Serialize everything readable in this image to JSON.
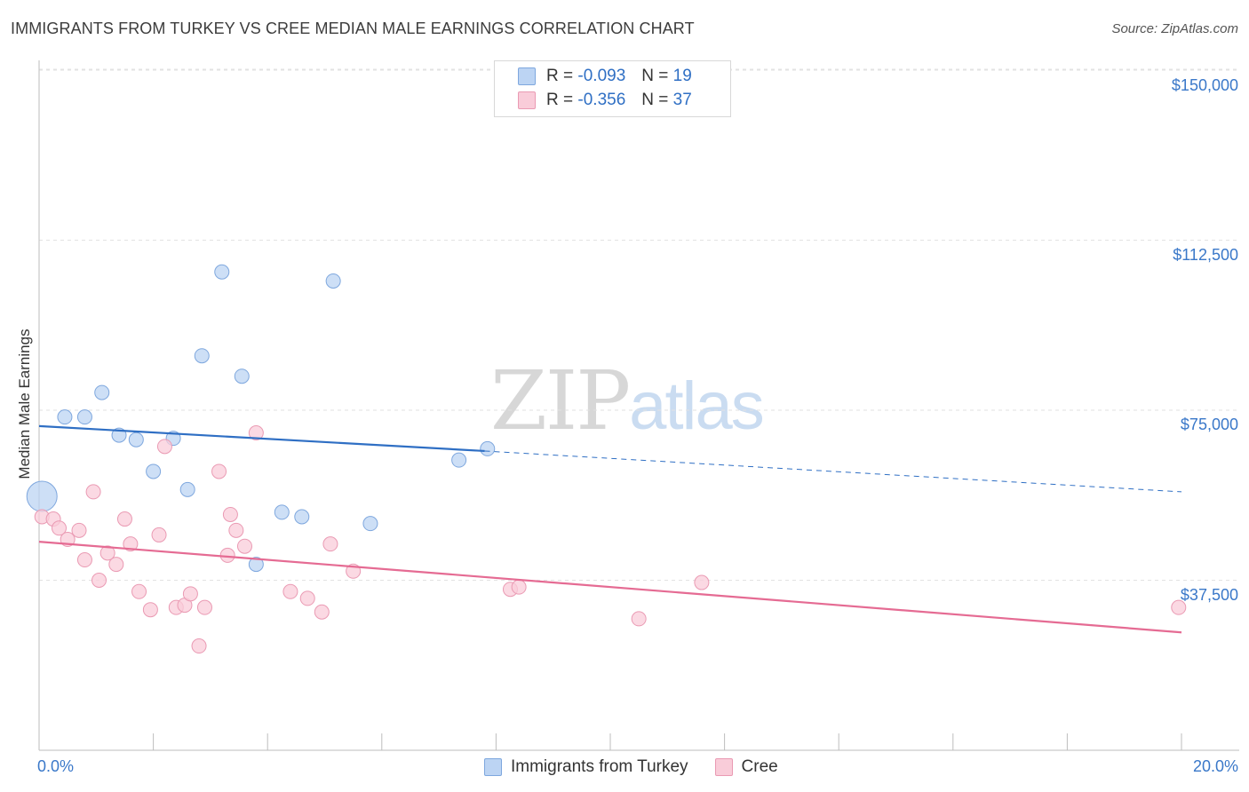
{
  "title": "IMMIGRANTS FROM TURKEY VS CREE MEDIAN MALE EARNINGS CORRELATION CHART",
  "source": "Source: ZipAtlas.com",
  "watermark": {
    "zip": "ZIP",
    "atlas": "atlas"
  },
  "legend": {
    "r_label": "R =",
    "n_label": "N =",
    "turkey": {
      "r": "-0.093",
      "n": "19"
    },
    "cree": {
      "r": "-0.356",
      "n": "37"
    }
  },
  "bottom_legend": {
    "turkey": "Immigrants from Turkey",
    "cree": "Cree"
  },
  "chart_data": {
    "type": "scatter",
    "title": "IMMIGRANTS FROM TURKEY VS CREE MEDIAN MALE EARNINGS CORRELATION CHART",
    "ylabel": "Median Male Earnings",
    "xlabel": "",
    "xlim": [
      0,
      20
    ],
    "ylim": [
      0,
      155000
    ],
    "y_ticks": [
      37500,
      75000,
      112500,
      150000
    ],
    "y_tick_labels": [
      "$37,500",
      "$75,000",
      "$112,500",
      "$150,000"
    ],
    "x_tick_labels": [
      "0.0%",
      "20.0%"
    ],
    "series": [
      {
        "name": "Immigrants from Turkey",
        "color": "#7ea7de",
        "fill": "#bcd4f3",
        "trend_color": "#2f6fc4",
        "trend": {
          "x0": 0,
          "y0": 71500,
          "x1": 7.8,
          "y1": 66000,
          "dash_to_x": 20,
          "dash_to_y": 57000
        },
        "points": [
          [
            0.05,
            56000
          ],
          [
            0.45,
            73500
          ],
          [
            0.8,
            73500
          ],
          [
            1.1,
            78900
          ],
          [
            1.4,
            69500
          ],
          [
            1.7,
            68500
          ],
          [
            2.0,
            61500
          ],
          [
            2.35,
            68800
          ],
          [
            2.6,
            57500
          ],
          [
            2.85,
            87000
          ],
          [
            3.2,
            105500
          ],
          [
            3.55,
            82500
          ],
          [
            3.8,
            41000
          ],
          [
            4.25,
            52500
          ],
          [
            4.6,
            51500
          ],
          [
            5.15,
            103500
          ],
          [
            5.8,
            50000
          ],
          [
            7.35,
            64000
          ],
          [
            7.85,
            66500
          ]
        ]
      },
      {
        "name": "Cree",
        "color": "#ea9ab3",
        "fill": "#f9ccd9",
        "trend_color": "#e56b93",
        "trend": {
          "x0": 0,
          "y0": 46000,
          "x1": 20,
          "y1": 26000
        },
        "points": [
          [
            0.05,
            51500
          ],
          [
            0.25,
            51000
          ],
          [
            0.35,
            49000
          ],
          [
            0.5,
            46500
          ],
          [
            0.7,
            48500
          ],
          [
            0.8,
            42000
          ],
          [
            0.95,
            57000
          ],
          [
            1.05,
            37500
          ],
          [
            1.2,
            43500
          ],
          [
            1.35,
            41000
          ],
          [
            1.5,
            51000
          ],
          [
            1.6,
            45500
          ],
          [
            1.75,
            35000
          ],
          [
            1.95,
            31000
          ],
          [
            2.1,
            47500
          ],
          [
            2.2,
            67000
          ],
          [
            2.4,
            31500
          ],
          [
            2.55,
            32000
          ],
          [
            2.65,
            34500
          ],
          [
            2.8,
            23000
          ],
          [
            2.9,
            31500
          ],
          [
            3.15,
            61500
          ],
          [
            3.3,
            43000
          ],
          [
            3.35,
            52000
          ],
          [
            3.45,
            48500
          ],
          [
            3.6,
            45000
          ],
          [
            3.8,
            70000
          ],
          [
            4.4,
            35000
          ],
          [
            4.7,
            33500
          ],
          [
            4.95,
            30500
          ],
          [
            5.1,
            45500
          ],
          [
            5.5,
            39500
          ],
          [
            8.25,
            35500
          ],
          [
            8.4,
            36000
          ],
          [
            10.5,
            29000
          ],
          [
            11.6,
            37000
          ],
          [
            19.95,
            31500
          ]
        ]
      }
    ]
  }
}
